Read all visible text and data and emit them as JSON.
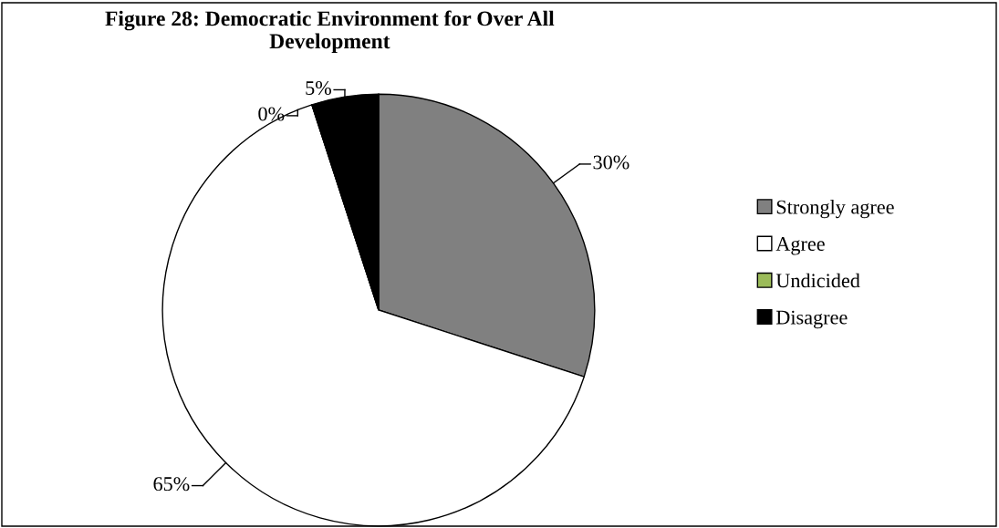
{
  "chart_data": {
    "type": "pie",
    "title": "Figure 28: Democratic Environment for Over All\nDevelopment",
    "categories": [
      "Strongly agree",
      "Agree",
      "Undicided",
      "Disagree"
    ],
    "values": [
      30,
      65,
      0,
      5
    ],
    "colors": [
      "#808080",
      "#ffffff",
      "#9bbb59",
      "#000000"
    ],
    "value_labels": [
      "30%",
      "65%",
      "0%",
      "5%"
    ],
    "legend": "right"
  }
}
